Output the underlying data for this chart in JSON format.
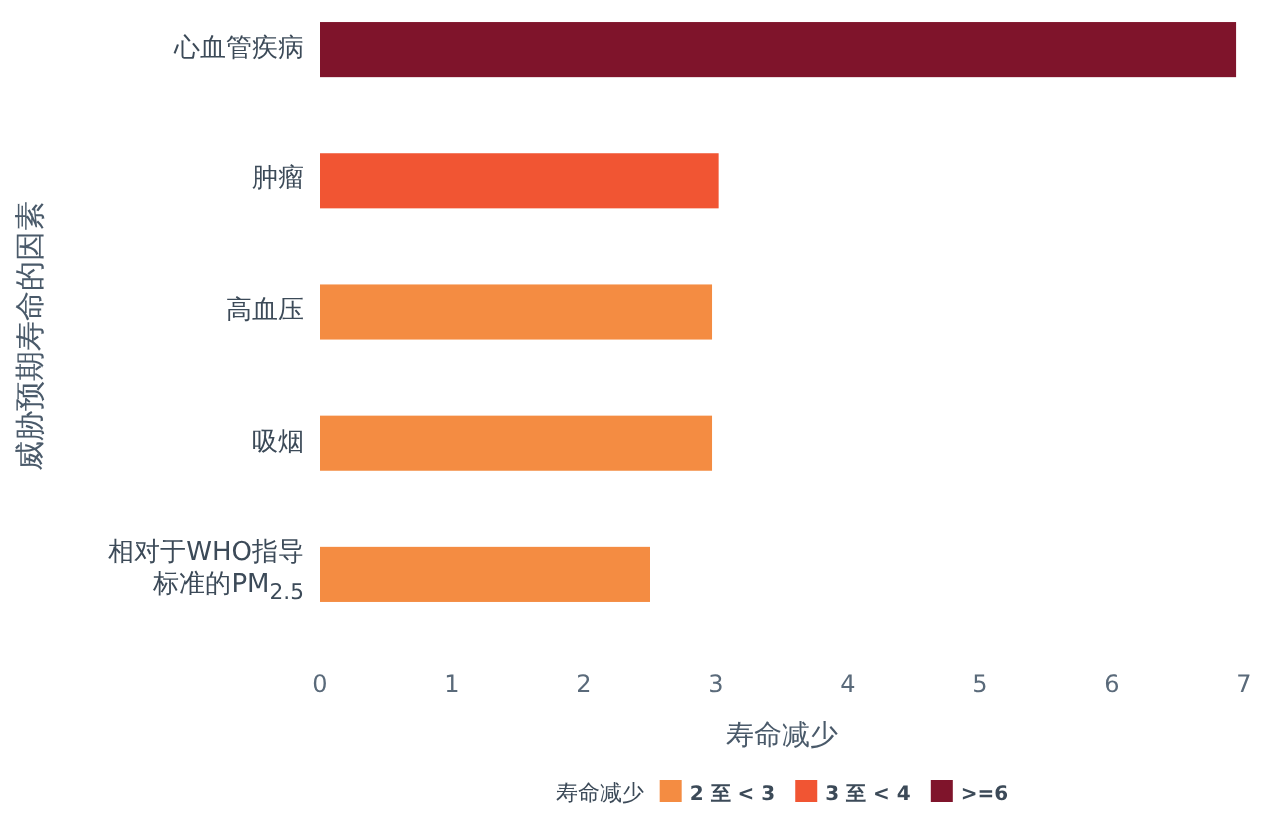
{
  "chart_data": {
    "type": "bar",
    "orientation": "horizontal",
    "categories": [
      "心血管疾病",
      "肿瘤",
      "高血压",
      "吸烟",
      "相对于WHO指导标准的PM$_{2.5}$"
    ],
    "series": [
      {
        "name": "2 至 < 3",
        "color": "#f48c42",
        "values": [
          null,
          null,
          2.97,
          2.97,
          2.5
        ]
      },
      {
        "name": "3 至 < 4",
        "color": "#f15533",
        "values": [
          null,
          3.02,
          null,
          null,
          null
        ]
      },
      {
        "name": ">=6",
        "color": "#7f142b",
        "values": [
          6.94,
          null,
          null,
          null,
          null
        ]
      }
    ],
    "xlim": [
      0,
      7
    ],
    "xticks": [
      0,
      1,
      2,
      3,
      4,
      5,
      6,
      7
    ],
    "xlabel": "寿命减少",
    "ylabel": "威胁预期寿命的因素",
    "legend_title": "寿命减少",
    "legend": "bottom",
    "grid": false
  }
}
